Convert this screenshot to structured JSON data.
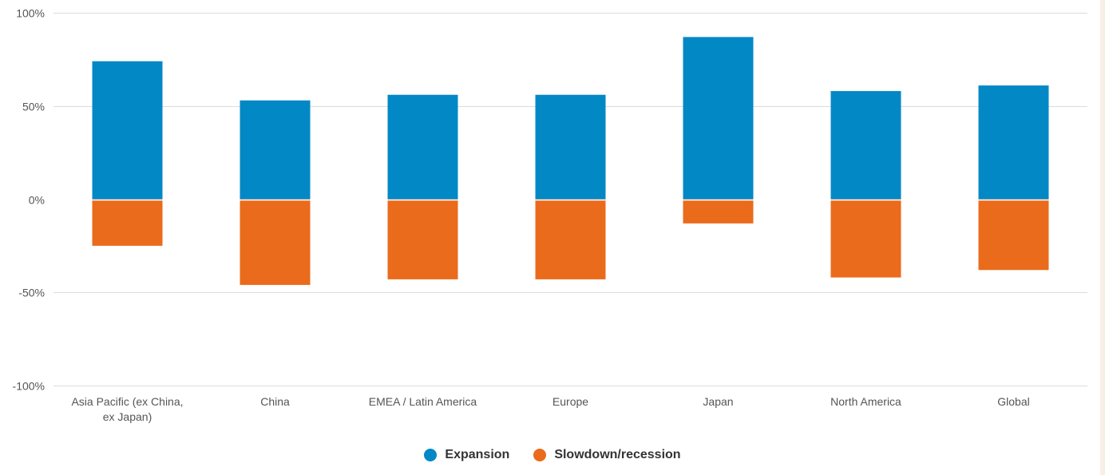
{
  "chart_data": {
    "type": "bar",
    "title": "",
    "xlabel": "",
    "ylabel": "",
    "ylim": [
      -100,
      100
    ],
    "y_ticks": [
      "100%",
      "50%",
      "0%",
      "-50%",
      "-100%"
    ],
    "y_tick_values": [
      100,
      50,
      0,
      -50,
      -100
    ],
    "grid": true,
    "legend_position": "bottom",
    "stacked": true,
    "categories": [
      [
        "Asia Pacific (ex China,",
        "ex Japan)"
      ],
      [
        "China"
      ],
      [
        "EMEA / Latin America"
      ],
      [
        "Europe"
      ],
      [
        "Japan"
      ],
      [
        "North America"
      ],
      [
        "Global"
      ]
    ],
    "series": [
      {
        "name": "Expansion",
        "color": "#0388c6",
        "values": [
          74,
          53,
          56,
          56,
          87,
          58,
          61
        ]
      },
      {
        "name": "Slowdown/recession",
        "color": "#ea6b1b",
        "values": [
          -25,
          -46,
          -43,
          -43,
          -13,
          -42,
          -38
        ]
      }
    ]
  }
}
